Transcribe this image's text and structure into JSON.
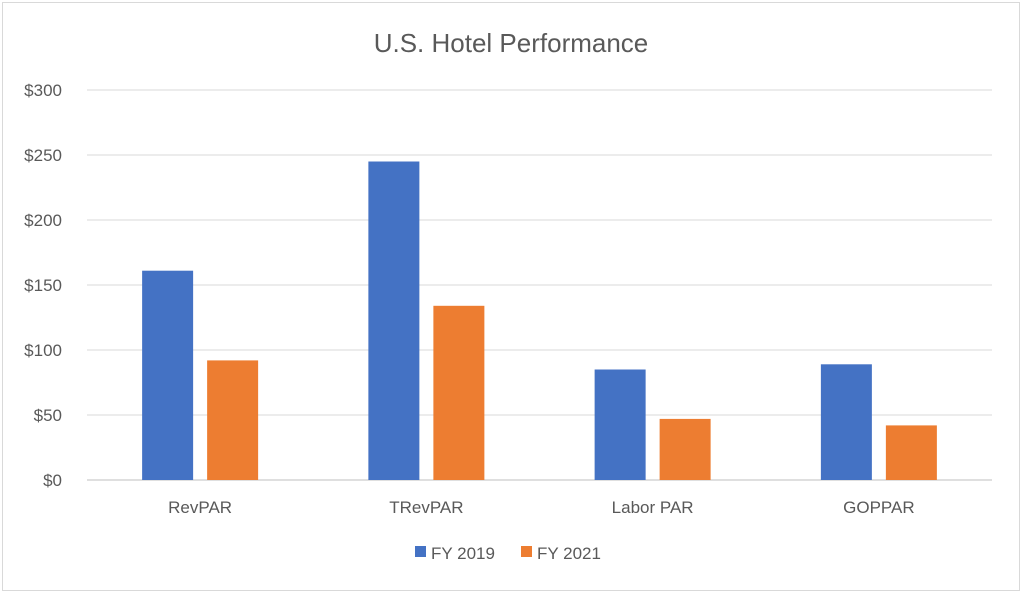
{
  "chart_data": {
    "type": "bar",
    "title": "U.S. Hotel Performance",
    "xlabel": "",
    "ylabel": "",
    "categories": [
      "RevPAR",
      "TRevPAR",
      "Labor PAR",
      "GOPPAR"
    ],
    "series": [
      {
        "name": "FY 2019",
        "color": "#4472c4",
        "values": [
          161,
          245,
          85,
          89
        ]
      },
      {
        "name": "FY 2021",
        "color": "#ed7d31",
        "values": [
          92,
          134,
          47,
          42
        ]
      }
    ],
    "ylim": [
      0,
      300
    ],
    "yticks": [
      0,
      50,
      100,
      150,
      200,
      250,
      300
    ],
    "ytick_labels": [
      "$0",
      "$50",
      "$100",
      "$150",
      "$200",
      "$250",
      "$300"
    ],
    "grid": true,
    "legend": "bottom"
  }
}
